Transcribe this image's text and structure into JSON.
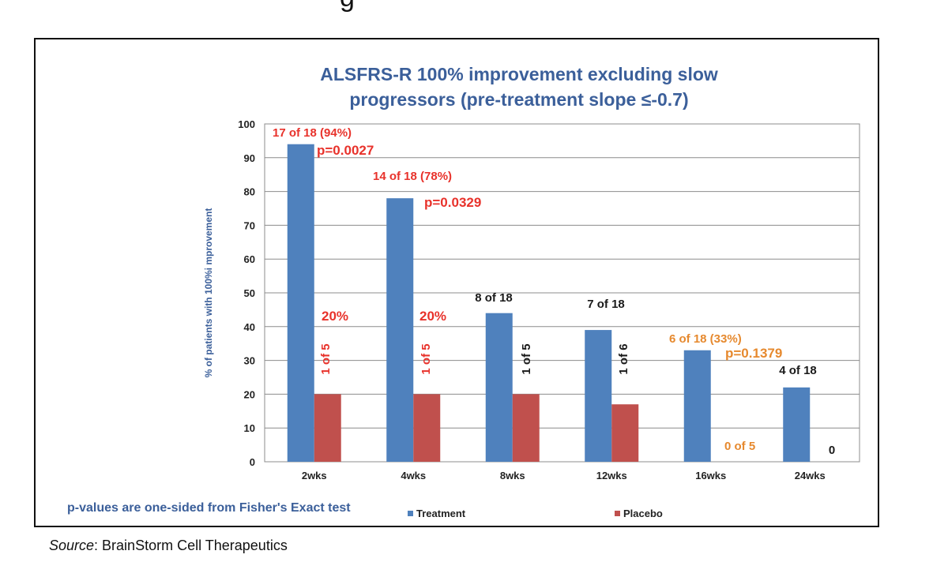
{
  "page": {
    "top_fragment": "g",
    "source_label": "Source",
    "source_text": ": BrainStorm Cell Therapeutics"
  },
  "colors": {
    "title": "#3b5f9a",
    "treatment": "#4f81bd",
    "placebo": "#c0504d",
    "red_text": "#e8322b",
    "orange_text": "#e6892e",
    "dark_text": "#1a1a1a",
    "gridline": "#8c8c8c"
  },
  "chart_data": {
    "type": "bar",
    "title_lines": [
      "ALSFRS-R 100% improvement  excluding slow",
      "progressors  (pre-treatment  slope ≤-0.7)"
    ],
    "ylabel": "% of patients with 100%i mprovement",
    "ylim": [
      0,
      100
    ],
    "yticks": [
      0,
      10,
      20,
      30,
      40,
      50,
      60,
      70,
      80,
      90,
      100
    ],
    "grid": true,
    "categories": [
      "2wks",
      "4wks",
      "8wks",
      "12wks",
      "16wks",
      "24wks"
    ],
    "series": [
      {
        "name": "Treatment",
        "values": [
          94,
          78,
          44,
          39,
          33,
          22
        ]
      },
      {
        "name": "Placebo",
        "values": [
          20,
          20,
          20,
          17,
          0,
          0
        ]
      }
    ],
    "legend_position": "bottom",
    "footnote": "p-values are one-sided from Fisher's Exact test",
    "annotations": [
      {
        "text": "17 of 18 (94%)",
        "color": "red",
        "category": 0,
        "series": 0
      },
      {
        "text": "p=0.0027",
        "color": "red",
        "category": 0,
        "series": 0
      },
      {
        "text": "20%",
        "color": "red",
        "category": 0,
        "series": 1
      },
      {
        "text": "1 of 5",
        "color": "red",
        "category": 0,
        "series": 1,
        "rotated": true
      },
      {
        "text": "14 of 18 (78%)",
        "color": "red",
        "category": 1,
        "series": 0
      },
      {
        "text": "p=0.0329",
        "color": "red",
        "category": 1,
        "series": 0
      },
      {
        "text": "20%",
        "color": "red",
        "category": 1,
        "series": 1
      },
      {
        "text": "1 of 5",
        "color": "red",
        "category": 1,
        "series": 1,
        "rotated": true
      },
      {
        "text": "8 of 18",
        "color": "dark",
        "category": 2,
        "series": 0
      },
      {
        "text": "1 of 5",
        "color": "dark",
        "category": 2,
        "series": 1,
        "rotated": true
      },
      {
        "text": "7 of 18",
        "color": "dark",
        "category": 3,
        "series": 0
      },
      {
        "text": "1 of 6",
        "color": "dark",
        "category": 3,
        "series": 1,
        "rotated": true
      },
      {
        "text": "6 of 18 (33%)",
        "color": "orange",
        "category": 4,
        "series": 0
      },
      {
        "text": "p=0.1379",
        "color": "orange",
        "category": 4,
        "series": 0
      },
      {
        "text": "0 of 5",
        "color": "orange",
        "category": 4,
        "series": 1
      },
      {
        "text": "4 of 18",
        "color": "dark",
        "category": 5,
        "series": 0
      },
      {
        "text": "0",
        "color": "dark",
        "category": 5,
        "series": 1
      }
    ]
  }
}
